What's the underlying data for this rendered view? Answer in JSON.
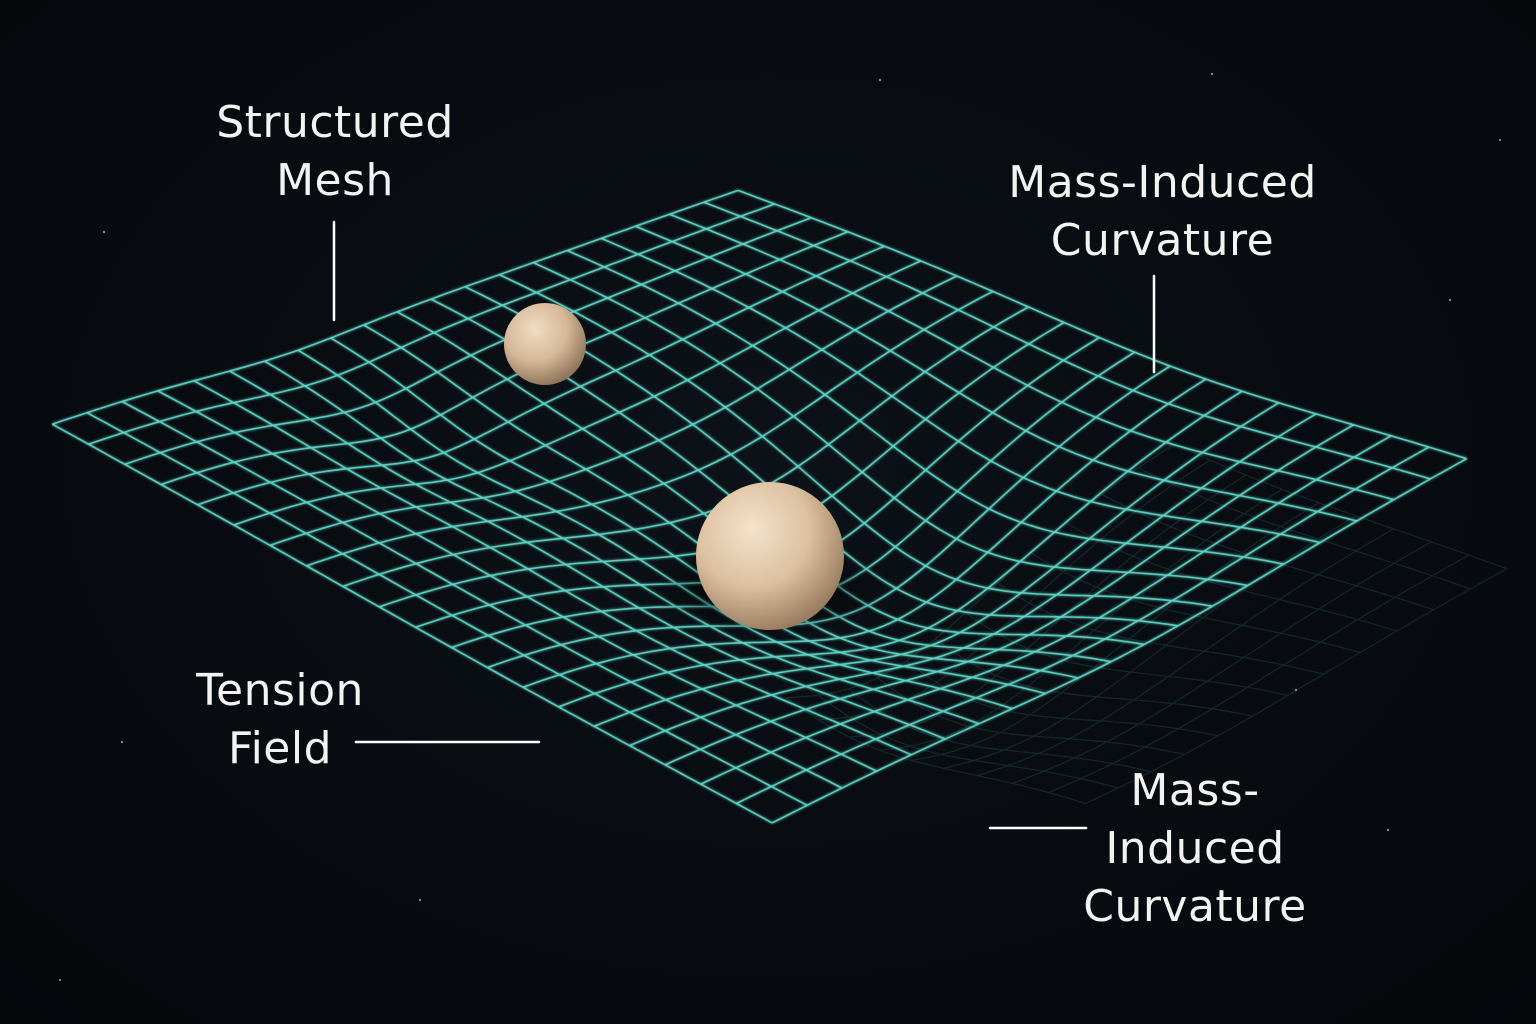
{
  "labels": {
    "structured_mesh": [
      "Structured",
      "Mesh"
    ],
    "mass_induced_curvature_top": [
      "Mass-Induced",
      "Curvature"
    ],
    "tension_field": [
      "Tension",
      "Field"
    ],
    "mass_induced_curvature_bottom": [
      "Mass-",
      "Induced",
      "Curvature"
    ]
  },
  "colors": {
    "background": "#080c11",
    "grid_line": "#5fd6c8",
    "label_text": "#f3f3f1",
    "leader_line": "#ffffff",
    "sphere_light": "#f2dcc2",
    "sphere_mid": "#d9bb9a",
    "sphere_dark": "#8e745a"
  },
  "objects": {
    "grid": {
      "cells_u": 20,
      "cells_v": 20
    },
    "spheres": [
      "small-sphere",
      "large-sphere"
    ]
  }
}
